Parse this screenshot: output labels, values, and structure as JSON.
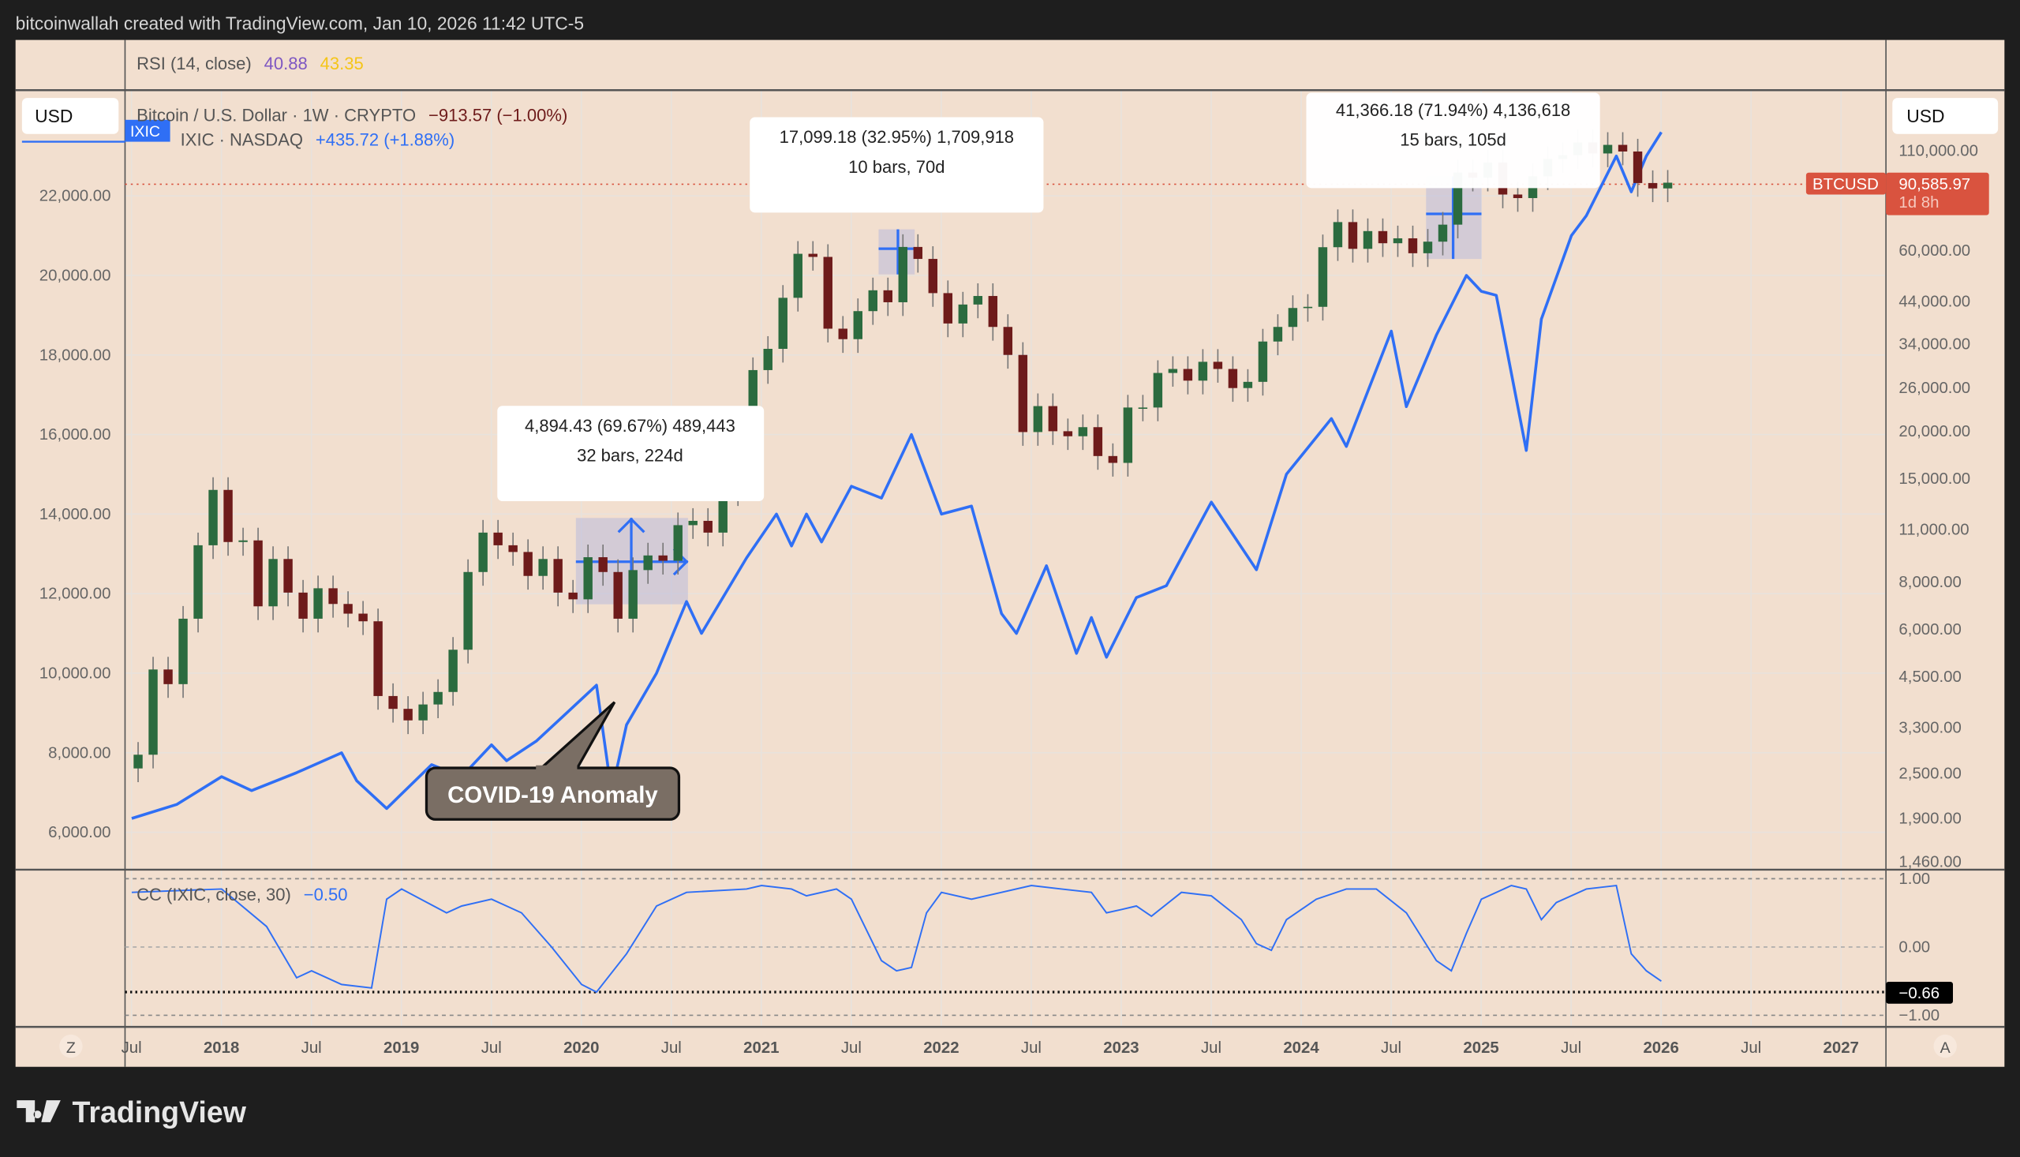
{
  "header": {
    "credit": "bitcoinwallah created with TradingView.com, Jan 10, 2026 11:42 UTC-5"
  },
  "rsi_legend": {
    "label": "RSI (14, close)",
    "value1": "40.88",
    "value2": "43.35",
    "color1": "#7e57c2",
    "color2": "#fdd835"
  },
  "legend": {
    "currency_left": "USD",
    "currency_right": "USD",
    "ixic_tag": "IXIC",
    "btc_title": "Bitcoin / U.S. Dollar · 1W · CRYPTO",
    "btc_change": "−913.57 (−1.00%)",
    "ixic_title": "IXIC · NASDAQ",
    "ixic_change": "+435.72 (+1.88%)"
  },
  "price_label": {
    "symbol": "BTCUSD",
    "price": "90,585.97",
    "countdown": "1d 8h"
  },
  "measures": [
    {
      "line1": "4,894.43 (69.67%) 489,443",
      "line2": "32 bars, 224d"
    },
    {
      "line1": "17,099.18 (32.95%) 1,709,918",
      "line2": "10 bars, 70d"
    },
    {
      "line1": "41,366.18 (71.94%) 4,136,618",
      "line2": "15 bars, 105d"
    }
  ],
  "callout": {
    "text": "COVID-19 Anomaly"
  },
  "cc_legend": {
    "label": "CC (IXIC, close, 30)",
    "value": "−0.50",
    "current": "−0.66"
  },
  "time_axis": {
    "left_button": "Z",
    "right_button": "A"
  },
  "footer": {
    "logo_text": "TradingView"
  },
  "colors": {
    "background": "#f2dfcf",
    "btc_up": "#2b6b3f",
    "btc_down": "#6e1b1b",
    "ixic_line": "#2f6ff5",
    "price_label": "#d9533f",
    "cc_line": "#2f6ff5"
  },
  "chart_data": [
    {
      "type": "candlestick+line",
      "interval": "1W",
      "x_ticks": [
        "Jul",
        "2018",
        "Jul",
        "2019",
        "Jul",
        "2020",
        "Jul",
        "2021",
        "Jul",
        "2022",
        "Jul",
        "2023",
        "Jul",
        "2024",
        "Jul",
        "2025",
        "Jul",
        "2026",
        "Jul",
        "2027"
      ],
      "left_axis": {
        "series": "IXIC",
        "scale": "linear",
        "ticks": [
          "6,000.00",
          "8,000.00",
          "10,000.00",
          "12,000.00",
          "14,000.00",
          "16,000.00",
          "18,000.00",
          "20,000.00",
          "22,000.00"
        ]
      },
      "right_axis": {
        "series": "BTCUSD",
        "scale": "log",
        "ticks": [
          "1,460.00",
          "1,900.00",
          "2,500.00",
          "3,300.00",
          "4,500.00",
          "6,000.00",
          "8,000.00",
          "11,000.00",
          "15,000.00",
          "20,000.00",
          "26,000.00",
          "34,000.00",
          "44,000.00",
          "60,000.00",
          "110,000.00"
        ]
      },
      "btc_monthly_close": [
        [
          "2017-07",
          2800
        ],
        [
          "2017-08",
          4700
        ],
        [
          "2017-09",
          4300
        ],
        [
          "2017-10",
          6400
        ],
        [
          "2017-11",
          10000
        ],
        [
          "2017-12",
          14000
        ],
        [
          "2018-01",
          10200
        ],
        [
          "2018-02",
          10300
        ],
        [
          "2018-03",
          6900
        ],
        [
          "2018-04",
          9200
        ],
        [
          "2018-05",
          7500
        ],
        [
          "2018-06",
          6400
        ],
        [
          "2018-07",
          7700
        ],
        [
          "2018-08",
          7000
        ],
        [
          "2018-09",
          6600
        ],
        [
          "2018-10",
          6300
        ],
        [
          "2018-11",
          4000
        ],
        [
          "2018-12",
          3700
        ],
        [
          "2019-01",
          3450
        ],
        [
          "2019-02",
          3800
        ],
        [
          "2019-03",
          4100
        ],
        [
          "2019-04",
          5300
        ],
        [
          "2019-05",
          8500
        ],
        [
          "2019-06",
          10800
        ],
        [
          "2019-07",
          10000
        ],
        [
          "2019-08",
          9600
        ],
        [
          "2019-09",
          8300
        ],
        [
          "2019-10",
          9200
        ],
        [
          "2019-11",
          7500
        ],
        [
          "2019-12",
          7200
        ],
        [
          "2020-01",
          9300
        ],
        [
          "2020-02",
          8500
        ],
        [
          "2020-03",
          6400
        ],
        [
          "2020-04",
          8600
        ],
        [
          "2020-05",
          9400
        ],
        [
          "2020-06",
          9100
        ],
        [
          "2020-07",
          11300
        ],
        [
          "2020-08",
          11600
        ],
        [
          "2020-09",
          10800
        ],
        [
          "2020-10",
          13800
        ],
        [
          "2020-11",
          19700
        ],
        [
          "2020-12",
          29000
        ],
        [
          "2021-01",
          33000
        ],
        [
          "2021-02",
          45000
        ],
        [
          "2021-03",
          58800
        ],
        [
          "2021-04",
          57700
        ],
        [
          "2021-05",
          37300
        ],
        [
          "2021-06",
          35000
        ],
        [
          "2021-07",
          41500
        ],
        [
          "2021-08",
          47100
        ],
        [
          "2021-09",
          43800
        ],
        [
          "2021-10",
          61300
        ],
        [
          "2021-11",
          57000
        ],
        [
          "2021-12",
          46300
        ],
        [
          "2022-01",
          38500
        ],
        [
          "2022-02",
          43200
        ],
        [
          "2022-03",
          45500
        ],
        [
          "2022-04",
          37700
        ],
        [
          "2022-05",
          31800
        ],
        [
          "2022-06",
          19900
        ],
        [
          "2022-07",
          23300
        ],
        [
          "2022-08",
          20000
        ],
        [
          "2022-09",
          19400
        ],
        [
          "2022-10",
          20500
        ],
        [
          "2022-11",
          17200
        ],
        [
          "2022-12",
          16500
        ],
        [
          "2023-01",
          23100
        ],
        [
          "2023-02",
          23100
        ],
        [
          "2023-03",
          28500
        ],
        [
          "2023-04",
          29200
        ],
        [
          "2023-05",
          27200
        ],
        [
          "2023-06",
          30500
        ],
        [
          "2023-07",
          29200
        ],
        [
          "2023-08",
          26000
        ],
        [
          "2023-09",
          27000
        ],
        [
          "2023-10",
          34500
        ],
        [
          "2023-11",
          37700
        ],
        [
          "2023-12",
          42300
        ],
        [
          "2024-01",
          42600
        ],
        [
          "2024-02",
          61200
        ],
        [
          "2024-03",
          71300
        ],
        [
          "2024-04",
          60600
        ],
        [
          "2024-05",
          67500
        ],
        [
          "2024-06",
          62700
        ],
        [
          "2024-07",
          64600
        ],
        [
          "2024-08",
          59000
        ],
        [
          "2024-09",
          63300
        ],
        [
          "2024-10",
          70200
        ],
        [
          "2024-11",
          96400
        ],
        [
          "2024-12",
          93400
        ],
        [
          "2025-01",
          102400
        ],
        [
          "2025-02",
          84300
        ],
        [
          "2025-03",
          82500
        ],
        [
          "2025-04",
          94200
        ],
        [
          "2025-05",
          104600
        ],
        [
          "2025-06",
          107100
        ],
        [
          "2025-07",
          115700
        ],
        [
          "2025-08",
          108200
        ],
        [
          "2025-09",
          114000
        ],
        [
          "2025-10",
          109500
        ],
        [
          "2025-11",
          90400
        ],
        [
          "2025-12",
          87500
        ],
        [
          "2026-01",
          90586
        ]
      ],
      "ixic_close": [
        [
          "2017-07",
          6350
        ],
        [
          "2017-10",
          6700
        ],
        [
          "2018-01",
          7400
        ],
        [
          "2018-03",
          7050
        ],
        [
          "2018-06",
          7500
        ],
        [
          "2018-09",
          8000
        ],
        [
          "2018-10",
          7300
        ],
        [
          "2018-12",
          6600
        ],
        [
          "2019-03",
          7700
        ],
        [
          "2019-05",
          7400
        ],
        [
          "2019-07",
          8200
        ],
        [
          "2019-08",
          7800
        ],
        [
          "2019-10",
          8300
        ],
        [
          "2019-12",
          9000
        ],
        [
          "2020-02",
          9700
        ],
        [
          "2020-03",
          7000
        ],
        [
          "2020-04",
          8700
        ],
        [
          "2020-06",
          10000
        ],
        [
          "2020-08",
          11800
        ],
        [
          "2020-09",
          11000
        ],
        [
          "2020-12",
          12900
        ],
        [
          "2021-02",
          14000
        ],
        [
          "2021-03",
          13200
        ],
        [
          "2021-04",
          14000
        ],
        [
          "2021-05",
          13300
        ],
        [
          "2021-07",
          14700
        ],
        [
          "2021-09",
          14400
        ],
        [
          "2021-11",
          16000
        ],
        [
          "2022-01",
          14000
        ],
        [
          "2022-03",
          14200
        ],
        [
          "2022-05",
          11500
        ],
        [
          "2022-06",
          11000
        ],
        [
          "2022-08",
          12700
        ],
        [
          "2022-10",
          10500
        ],
        [
          "2022-11",
          11400
        ],
        [
          "2022-12",
          10400
        ],
        [
          "2023-02",
          11900
        ],
        [
          "2023-04",
          12200
        ],
        [
          "2023-07",
          14300
        ],
        [
          "2023-10",
          12600
        ],
        [
          "2023-12",
          15000
        ],
        [
          "2024-03",
          16400
        ],
        [
          "2024-04",
          15700
        ],
        [
          "2024-07",
          18600
        ],
        [
          "2024-08",
          16700
        ],
        [
          "2024-10",
          18500
        ],
        [
          "2024-12",
          20000
        ],
        [
          "2025-01",
          19600
        ],
        [
          "2025-02",
          19500
        ],
        [
          "2025-04",
          15600
        ],
        [
          "2025-05",
          18900
        ],
        [
          "2025-07",
          21000
        ],
        [
          "2025-08",
          21500
        ],
        [
          "2025-10",
          23000
        ],
        [
          "2025-11",
          22100
        ],
        [
          "2025-12",
          23000
        ],
        [
          "2026-01",
          23600
        ]
      ]
    },
    {
      "type": "line",
      "title": "CC (IXIC, close, 30)",
      "y_ticks": [
        "1.00",
        "0.00",
        "−1.00"
      ],
      "ylim": [
        -1,
        1
      ],
      "reference_level": -0.66,
      "values": [
        [
          "2017-07",
          0.8
        ],
        [
          "2018-01",
          0.85
        ],
        [
          "2018-04",
          0.3
        ],
        [
          "2018-06",
          -0.45
        ],
        [
          "2018-07",
          -0.35
        ],
        [
          "2018-09",
          -0.55
        ],
        [
          "2018-11",
          -0.6
        ],
        [
          "2018-12",
          0.7
        ],
        [
          "2019-01",
          0.85
        ],
        [
          "2019-04",
          0.5
        ],
        [
          "2019-05",
          0.6
        ],
        [
          "2019-07",
          0.7
        ],
        [
          "2019-09",
          0.5
        ],
        [
          "2019-11",
          0.0
        ],
        [
          "2020-01",
          -0.55
        ],
        [
          "2020-02",
          -0.66
        ],
        [
          "2020-04",
          -0.1
        ],
        [
          "2020-06",
          0.6
        ],
        [
          "2020-08",
          0.8
        ],
        [
          "2020-12",
          0.85
        ],
        [
          "2021-01",
          0.9
        ],
        [
          "2021-03",
          0.85
        ],
        [
          "2021-04",
          0.75
        ],
        [
          "2021-06",
          0.85
        ],
        [
          "2021-07",
          0.7
        ],
        [
          "2021-09",
          -0.2
        ],
        [
          "2021-10",
          -0.35
        ],
        [
          "2021-11",
          -0.3
        ],
        [
          "2021-12",
          0.5
        ],
        [
          "2022-01",
          0.8
        ],
        [
          "2022-03",
          0.7
        ],
        [
          "2022-05",
          0.8
        ],
        [
          "2022-07",
          0.9
        ],
        [
          "2022-09",
          0.85
        ],
        [
          "2022-11",
          0.8
        ],
        [
          "2022-12",
          0.5
        ],
        [
          "2023-01",
          0.55
        ],
        [
          "2023-02",
          0.6
        ],
        [
          "2023-03",
          0.45
        ],
        [
          "2023-05",
          0.8
        ],
        [
          "2023-07",
          0.75
        ],
        [
          "2023-09",
          0.4
        ],
        [
          "2023-10",
          0.05
        ],
        [
          "2023-11",
          -0.05
        ],
        [
          "2023-12",
          0.4
        ],
        [
          "2024-02",
          0.7
        ],
        [
          "2024-04",
          0.85
        ],
        [
          "2024-06",
          0.85
        ],
        [
          "2024-08",
          0.5
        ],
        [
          "2024-10",
          -0.2
        ],
        [
          "2024-11",
          -0.35
        ],
        [
          "2024-12",
          0.2
        ],
        [
          "2025-01",
          0.7
        ],
        [
          "2025-03",
          0.9
        ],
        [
          "2025-04",
          0.85
        ],
        [
          "2025-05",
          0.4
        ],
        [
          "2025-06",
          0.65
        ],
        [
          "2025-08",
          0.85
        ],
        [
          "2025-10",
          0.9
        ],
        [
          "2025-11",
          -0.1
        ],
        [
          "2025-12",
          -0.35
        ],
        [
          "2026-01",
          -0.5
        ]
      ]
    }
  ]
}
